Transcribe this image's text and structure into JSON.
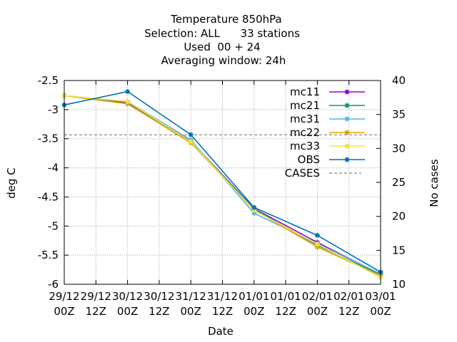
{
  "chart_data": {
    "type": "line",
    "title_lines": [
      "Temperature 850hPa",
      "Selection: ALL      33 stations",
      "Used  00 + 24",
      "Averaging window: 24h"
    ],
    "xlabel": "Date",
    "ylabel": "deg C",
    "y2label": "No cases",
    "x_ticks": [
      {
        "line1": "29/12",
        "line2": "00Z"
      },
      {
        "line1": "29/12",
        "line2": "12Z"
      },
      {
        "line1": "30/12",
        "line2": "00Z"
      },
      {
        "line1": "30/12",
        "line2": "12Z"
      },
      {
        "line1": "31/12",
        "line2": "00Z"
      },
      {
        "line1": "31/12",
        "line2": "12Z"
      },
      {
        "line1": "01/01",
        "line2": "00Z"
      },
      {
        "line1": "01/01",
        "line2": "12Z"
      },
      {
        "line1": "02/01",
        "line2": "00Z"
      },
      {
        "line1": "02/01",
        "line2": "12Z"
      },
      {
        "line1": "03/01",
        "line2": "00Z"
      }
    ],
    "x_tick_labels": [
      "29/12\n00Z",
      "29/12\n12Z",
      "30/12\n00Z",
      "30/12\n12Z",
      "31/12\n00Z",
      "31/12\n12Z",
      "01/01\n00Z",
      "01/01\n12Z",
      "02/01\n00Z",
      "02/01\n12Z",
      "03/01\n00Z"
    ],
    "y_ticks": [
      "-2.5",
      "-3",
      "-3.5",
      "-4",
      "-4.5",
      "-5",
      "-5.5",
      "-6"
    ],
    "y2_ticks": [
      "40",
      "35",
      "30",
      "25",
      "20",
      "15",
      "10"
    ],
    "ylim": [
      -6,
      -2.5
    ],
    "y2lim": [
      10,
      40
    ],
    "xlim": [
      0,
      10
    ],
    "grid": true,
    "legend_position": "top-right",
    "x_points": [
      0,
      2,
      4,
      6,
      8,
      10
    ],
    "series": [
      {
        "name": "mc11",
        "color": "#9400d3",
        "values": [
          -2.76,
          -2.88,
          -3.54,
          -4.7,
          -5.28,
          -5.83
        ],
        "axis": "y"
      },
      {
        "name": "mc21",
        "color": "#009e73",
        "values": [
          -2.76,
          -2.87,
          -3.55,
          -4.71,
          -5.33,
          -5.84
        ],
        "axis": "y"
      },
      {
        "name": "mc31",
        "color": "#56b4e9",
        "values": [
          -2.76,
          -2.86,
          -3.52,
          -4.78,
          -5.3,
          -5.82
        ],
        "axis": "y"
      },
      {
        "name": "mc22",
        "color": "#e69f00",
        "values": [
          -2.76,
          -2.9,
          -3.57,
          -4.72,
          -5.36,
          -5.85
        ],
        "axis": "y"
      },
      {
        "name": "mc33",
        "color": "#f0e442",
        "values": [
          -2.76,
          -2.86,
          -3.55,
          -4.73,
          -5.31,
          -5.88
        ],
        "axis": "y"
      },
      {
        "name": "OBS",
        "color": "#0072b2",
        "values": [
          -2.92,
          -2.69,
          -3.43,
          -4.68,
          -5.16,
          -5.79
        ],
        "axis": "y"
      }
    ],
    "cases": {
      "name": "CASES",
      "color": "#999999",
      "value": 32,
      "axis": "y2"
    }
  }
}
